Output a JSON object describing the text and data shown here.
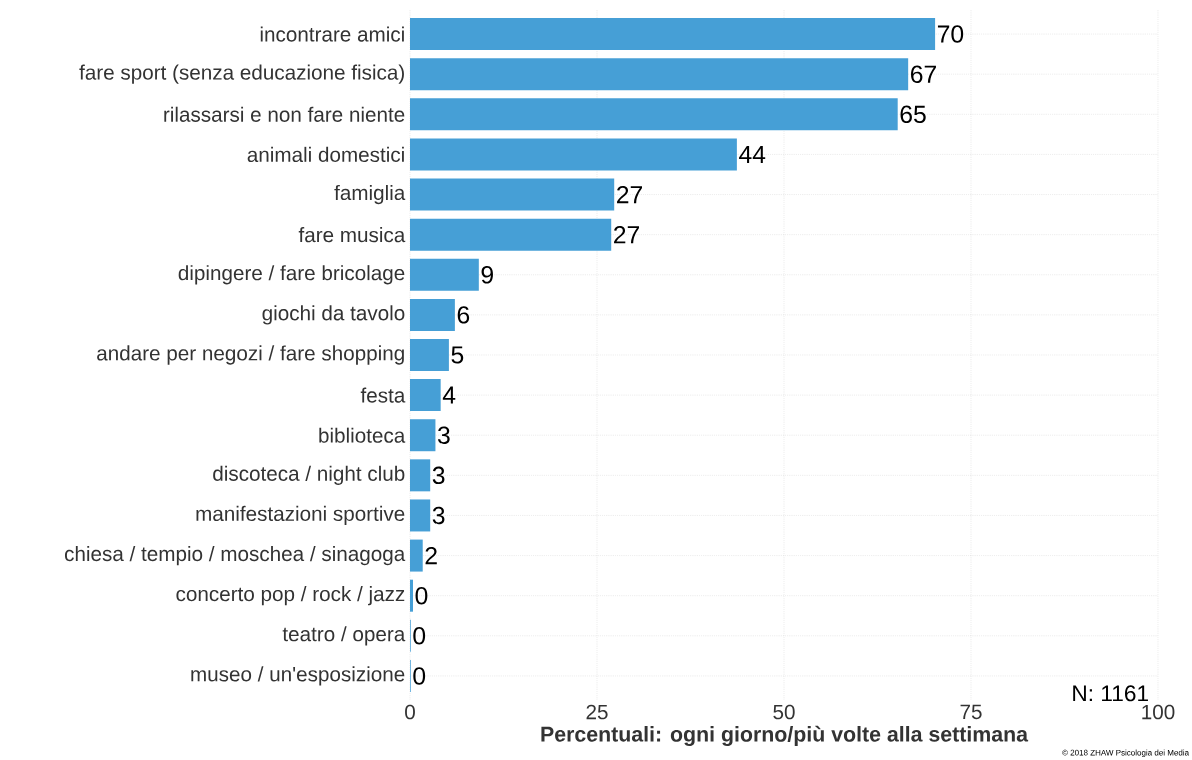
{
  "chart_data": {
    "type": "bar",
    "orientation": "horizontal",
    "xlabel": "Percentuali: ogni giorno/più volte alla settimana",
    "categories": [
      "incontrare amici",
      "fare sport (senza educazione fisica)",
      "rilassarsi e non fare niente",
      "animali domestici",
      "famiglia",
      "fare musica",
      "dipingere / fare bricolage",
      "giochi da tavolo",
      "andare per negozi / fare shopping",
      "festa",
      "biblioteca",
      "discoteca / night club",
      "manifestazioni sportive",
      "chiesa / tempio / moschea / sinagoga",
      "concerto pop / rock / jazz",
      "teatro / opera",
      "museo / un'esposizione"
    ],
    "values": [
      70.2,
      66.6,
      65.2,
      43.7,
      27.3,
      26.9,
      9.2,
      6.0,
      5.2,
      4.1,
      3.4,
      2.7,
      2.7,
      1.7,
      0.4,
      0.1,
      0.1
    ],
    "value_labels": [
      "70",
      "67",
      "65",
      "44",
      "27",
      "27",
      "9",
      "6",
      "5",
      "4",
      "3",
      "3",
      "3",
      "2",
      "0",
      "0",
      "0"
    ],
    "color": "#469fd6",
    "xlim": [
      0,
      100
    ],
    "xticks": [
      0,
      25,
      50,
      75,
      100
    ],
    "grid": true,
    "annotations": [
      "N: 1161",
      "© 2018 ZHAW Psicologia dei Media"
    ]
  }
}
